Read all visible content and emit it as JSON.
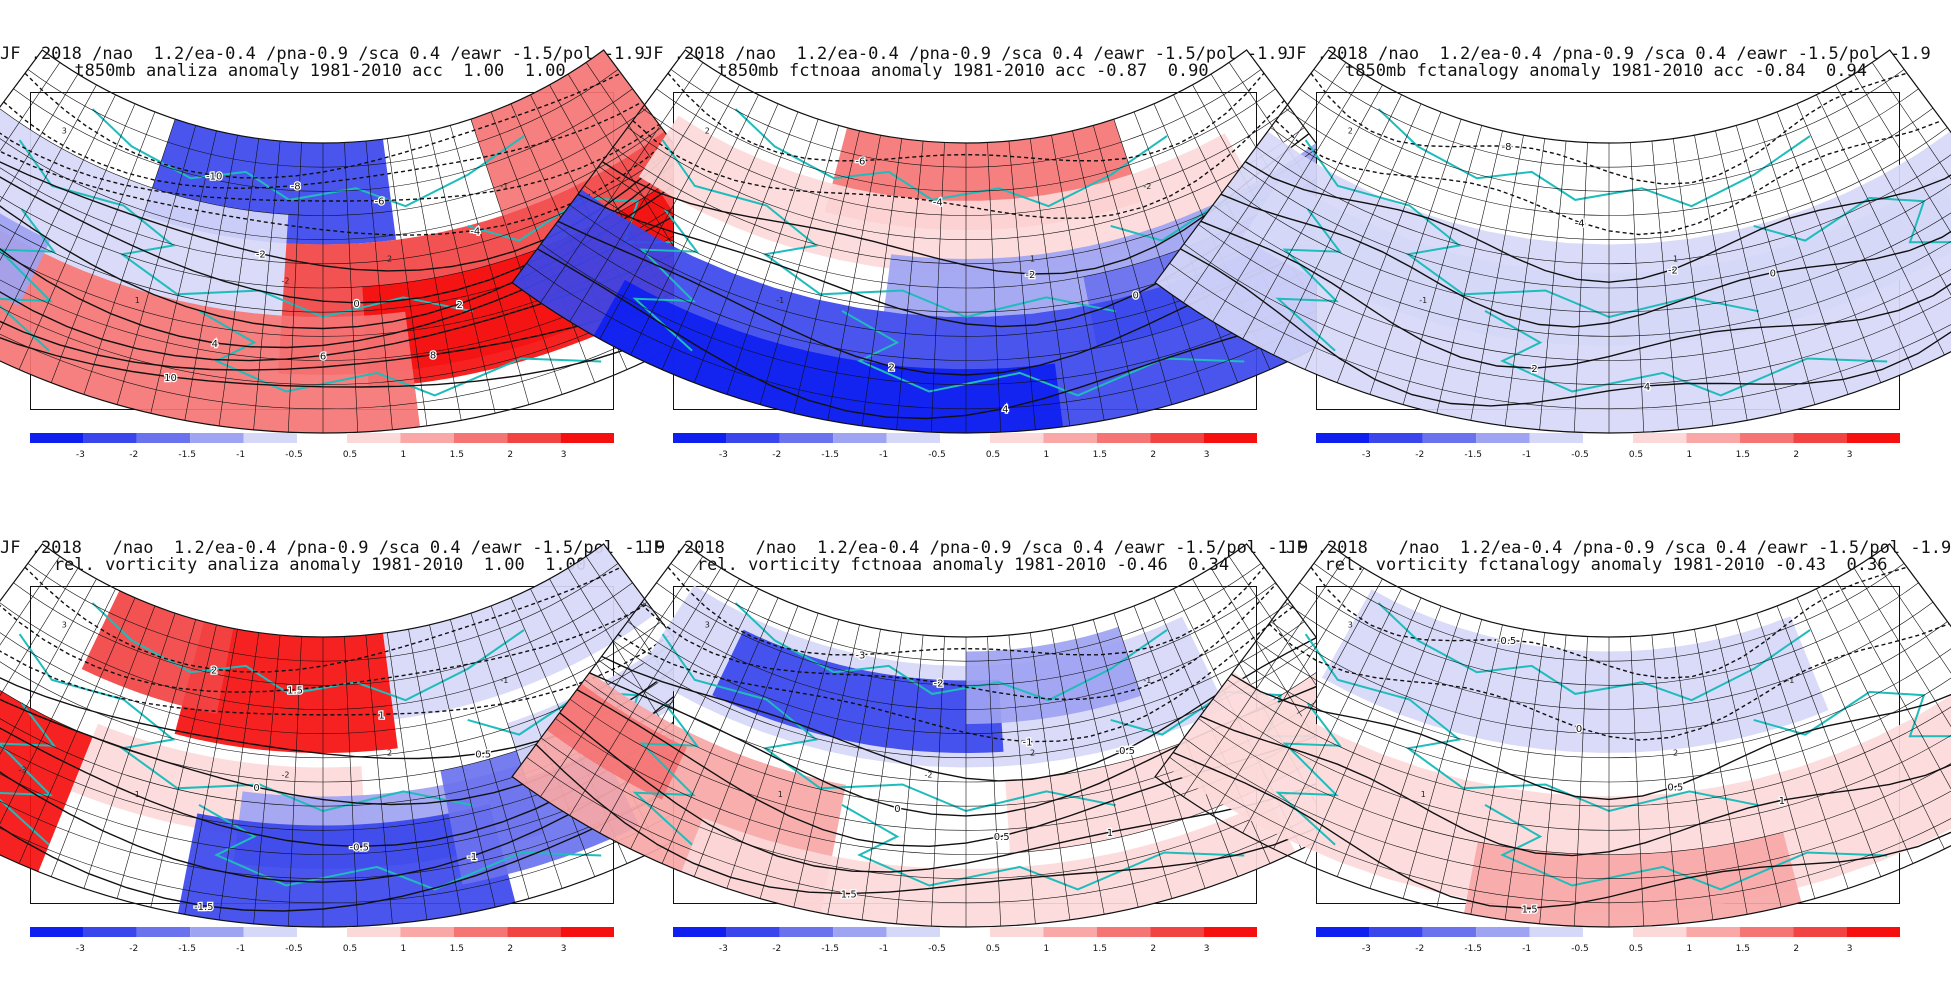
{
  "colors": {
    "neg3": "#0f1ff0",
    "neg2": "#3a46ec",
    "neg15": "#6a72ee",
    "neg1": "#9ea3f2",
    "neg05": "#d6d8f7",
    "pos05": "#fcd9d9",
    "pos1": "#f9a7a7",
    "pos15": "#f57474",
    "pos2": "#f24343",
    "pos3": "#f50f0f",
    "coast": "#1fbcbc",
    "grid": "#111111"
  },
  "legend_labels": {
    "neg": [
      "-3",
      "-2",
      "-1.5",
      "-1",
      "-0.5"
    ],
    "pos": [
      "0.5",
      "1",
      "1.5",
      "2",
      "3"
    ]
  },
  "panels": [
    {
      "title1": "JF .2018 /nao  1.2/ea-0.4 /pna-0.9 /sca 0.4 /eawr -1.5/pol -1.9",
      "title2": "t850mb analiza anomaly 1981-2010 acc  1.00  1.00",
      "contour_labels": [
        "-10",
        "-8",
        "-6",
        "-4",
        "-2",
        "0",
        "2",
        "4",
        "6",
        "8",
        "10"
      ],
      "field_labels": [
        "3",
        "2",
        "1",
        "-1",
        "-2"
      ]
    },
    {
      "title1": "JF .2018 /nao  1.2/ea-0.4 /pna-0.9 /sca 0.4 /eawr -1.5/pol -1.9",
      "title2": "t850mb fctnoaa anomaly 1981-2010 acc -0.87  0.90",
      "contour_labels": [
        "-6",
        "-4",
        "-2",
        "0",
        "2",
        "4"
      ],
      "field_labels": [
        "2",
        "1",
        "-1",
        "-2"
      ]
    },
    {
      "title1": "JF .2018 /nao  1.2/ea-0.4 /pna-0.9 /sca 0.4 /eawr -1.5/pol -1.9",
      "title2": "t850mb fctanalogy anomaly 1981-2010 acc -0.84  0.94",
      "contour_labels": [
        "-8",
        "-4",
        "-2",
        "0",
        "2",
        "4"
      ],
      "field_labels": [
        "2",
        "1",
        "-1"
      ]
    },
    {
      "title1": "JF .2018   /nao  1.2/ea-0.4 /pna-0.9 /sca 0.4 /eawr -1.5/pol -1.9",
      "title2": "rel. vorticity analiza anomaly 1981-2010  1.00  1.00",
      "contour_labels": [
        "2",
        "1.5",
        "1",
        "0.5",
        "0",
        "-0.5",
        "-1",
        "-1.5"
      ],
      "field_labels": [
        "3",
        "2",
        "1",
        "-1",
        "-2",
        "-3"
      ]
    },
    {
      "title1": "JF .2018   /nao  1.2/ea-0.4 /pna-0.9 /sca 0.4 /eawr -1.5/pol -1.9",
      "title2": "rel. vorticity fctnoaa anomaly 1981-2010 -0.46  0.34",
      "contour_labels": [
        "-3",
        "-2",
        "-1",
        "-0.5",
        "0",
        "0.5",
        "1",
        "1.5"
      ],
      "field_labels": [
        "3",
        "2",
        "1",
        "-1",
        "-2"
      ]
    },
    {
      "title1": "JF .2018   /nao  1.2/ea-0.4 /pna-0.9 /sca 0.4 /eawr -1.5/pol -1.9",
      "title2": "rel. vorticity fctanalogy anomaly 1981-2010 -0.43  0.36",
      "contour_labels": [
        "-0.5",
        "0",
        "0.5",
        "1",
        "1.5"
      ],
      "field_labels": [
        "3",
        "2",
        "1",
        "-1"
      ]
    }
  ]
}
